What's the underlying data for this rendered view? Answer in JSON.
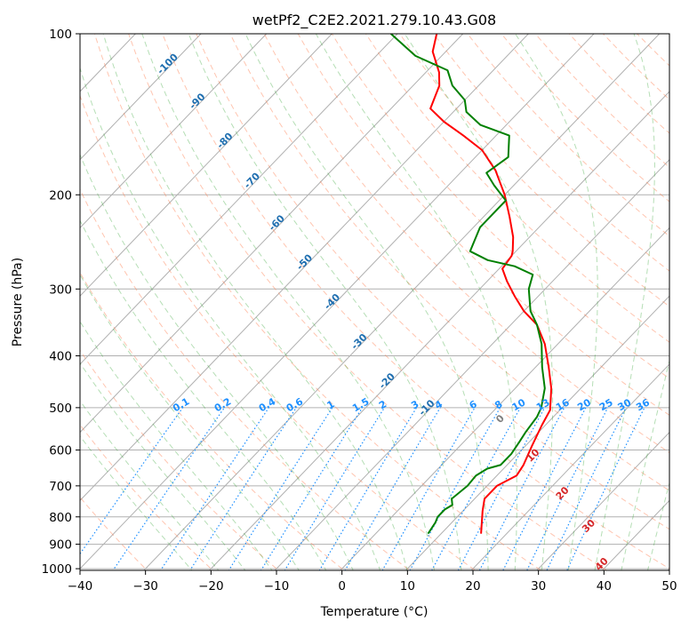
{
  "chart_data": {
    "type": "skew-t",
    "title": "wetPf2_C2E2.2021.279.10.43.G08",
    "xlabel": "Temperature (°C)",
    "ylabel": "Pressure (hPa)",
    "xlim": [
      -40,
      50
    ],
    "ylim": [
      1050,
      100
    ],
    "x_ticks": [
      "−40",
      "−30",
      "−20",
      "−10",
      "0",
      "10",
      "20",
      "30",
      "40",
      "50"
    ],
    "y_ticks": [
      "100",
      "200",
      "300",
      "400",
      "500",
      "600",
      "700",
      "800",
      "900",
      "1000"
    ],
    "grid": true,
    "series": [
      {
        "role": "temperature",
        "color": "#ff0000",
        "points": [
          [
            16.1,
            860
          ],
          [
            13,
            780
          ],
          [
            11.5,
            740
          ],
          [
            11.5,
            700
          ],
          [
            13,
            670
          ],
          [
            12.5,
            640
          ],
          [
            11,
            590
          ],
          [
            9.5,
            540
          ],
          [
            8.5,
            505
          ],
          [
            5.5,
            460
          ],
          [
            2,
            420
          ],
          [
            -2,
            380
          ],
          [
            -6,
            350
          ],
          [
            -10,
            330
          ],
          [
            -13.5,
            310
          ],
          [
            -17,
            290
          ],
          [
            -19.5,
            275
          ],
          [
            -20,
            260
          ],
          [
            -20.5,
            255
          ],
          [
            -22.5,
            240
          ],
          [
            -26,
            220
          ],
          [
            -30,
            200
          ],
          [
            -35,
            180
          ],
          [
            -40,
            165
          ],
          [
            -45,
            155
          ],
          [
            -50,
            146
          ],
          [
            -54,
            138
          ],
          [
            -56,
            125
          ],
          [
            -58,
            118
          ],
          [
            -62,
            108
          ],
          [
            -64,
            100
          ]
        ]
      },
      {
        "role": "dewpoint",
        "color": "#008000",
        "points": [
          [
            8,
            860
          ],
          [
            7.5,
            820
          ],
          [
            7,
            800
          ],
          [
            7,
            775
          ],
          [
            7.5,
            760
          ],
          [
            6.5,
            740
          ],
          [
            7,
            700
          ],
          [
            6.8,
            670
          ],
          [
            7.5,
            650
          ],
          [
            9,
            640
          ],
          [
            9,
            610
          ],
          [
            8.5,
            580
          ],
          [
            8,
            555
          ],
          [
            7.5,
            520
          ],
          [
            6.8,
            500
          ],
          [
            4.5,
            460
          ],
          [
            1,
            420
          ],
          [
            -2.5,
            380
          ],
          [
            -6,
            350
          ],
          [
            -9,
            330
          ],
          [
            -12.5,
            300
          ],
          [
            -14,
            282
          ],
          [
            -18,
            272
          ],
          [
            -23,
            265
          ],
          [
            -27,
            255
          ],
          [
            -29,
            230
          ],
          [
            -29,
            205
          ],
          [
            -33,
            192
          ],
          [
            -36,
            182
          ],
          [
            -35,
            170
          ],
          [
            -38,
            155
          ],
          [
            -44,
            148
          ],
          [
            -48,
            140
          ],
          [
            -50,
            133
          ],
          [
            -54,
            125
          ],
          [
            -57,
            117
          ],
          [
            -64,
            110
          ],
          [
            -71,
            100
          ]
        ]
      }
    ],
    "dry_adiabat_labels": [
      "-100",
      "-90",
      "-80",
      "-70",
      "-60",
      "-50",
      "-40",
      "-30",
      "-20",
      "-10"
    ],
    "mixing_ratio_labels": [
      "0.1",
      "0.2",
      "0.4",
      "0.6",
      "1",
      "1.5",
      "2",
      "3",
      "4",
      "6",
      "8",
      "10",
      "13",
      "16",
      "20",
      "25",
      "30",
      "36"
    ],
    "moist_adiabat_labels": [
      "0",
      "10",
      "20",
      "30",
      "40"
    ],
    "colors": {
      "temperature": "#ff0000",
      "dewpoint": "#008000",
      "isotherm": "#b0b0b0",
      "dry_adiabat": "#ff7f50",
      "moist_adiabat": "#2ca02c",
      "mixing_ratio": "#1e90ff",
      "dry_label": "#1f6fb0",
      "mixing_label": "#1e90ff",
      "moist_label": "#d62728"
    }
  }
}
